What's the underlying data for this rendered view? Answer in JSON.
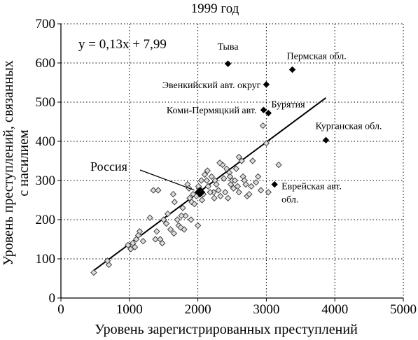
{
  "chart_data": {
    "type": "scatter",
    "title": "1999 год",
    "xlabel": "Уровень зарегистрированных преступлений",
    "ylabel": [
      "Уровень преступлений, связанных",
      "с насилием"
    ],
    "xlim": [
      0,
      5000
    ],
    "ylim": [
      0,
      700
    ],
    "x_ticks": [
      0,
      1000,
      2000,
      3000,
      4000,
      5000
    ],
    "y_ticks": [
      0,
      100,
      200,
      300,
      400,
      500,
      600,
      700
    ],
    "x_tick_labels": [
      "0",
      "1000",
      "2000",
      "3000",
      "4000",
      "5000"
    ],
    "y_tick_labels": [
      "0",
      "100",
      "200",
      "300",
      "400",
      "500",
      "600",
      "700"
    ],
    "grid": true,
    "equation": "y = 0,13x + 7,99",
    "trendline": {
      "slope": 0.13,
      "intercept": 7.99,
      "x_range": [
        480,
        3870
      ]
    },
    "regions": [
      [
        480,
        65
      ],
      [
        700,
        85
      ],
      [
        680,
        95
      ],
      [
        980,
        135
      ],
      [
        1020,
        125
      ],
      [
        1080,
        130
      ],
      [
        1100,
        150
      ],
      [
        1150,
        170
      ],
      [
        1130,
        160
      ],
      [
        1200,
        145
      ],
      [
        1050,
        140
      ],
      [
        1300,
        205
      ],
      [
        1350,
        275
      ],
      [
        1400,
        170
      ],
      [
        1380,
        150
      ],
      [
        1420,
        275
      ],
      [
        1450,
        150
      ],
      [
        1480,
        140
      ],
      [
        1500,
        200
      ],
      [
        1560,
        215
      ],
      [
        1600,
        175
      ],
      [
        1640,
        265
      ],
      [
        1650,
        165
      ],
      [
        1700,
        200
      ],
      [
        1720,
        185
      ],
      [
        1750,
        180
      ],
      [
        1780,
        230
      ],
      [
        1800,
        175
      ],
      [
        1820,
        210
      ],
      [
        1850,
        290
      ],
      [
        1870,
        280
      ],
      [
        1900,
        200
      ],
      [
        1910,
        245
      ],
      [
        1930,
        265
      ],
      [
        1950,
        240
      ],
      [
        2000,
        185
      ],
      [
        2020,
        280
      ],
      [
        2050,
        300
      ],
      [
        2080,
        265
      ],
      [
        2100,
        315
      ],
      [
        2130,
        300
      ],
      [
        2150,
        285
      ],
      [
        2200,
        310
      ],
      [
        2230,
        270
      ],
      [
        2250,
        300
      ],
      [
        2270,
        290
      ],
      [
        2300,
        275
      ],
      [
        2330,
        260
      ],
      [
        2360,
        340
      ],
      [
        2380,
        305
      ],
      [
        2400,
        270
      ],
      [
        2420,
        330
      ],
      [
        2440,
        255
      ],
      [
        2460,
        320
      ],
      [
        2480,
        290
      ],
      [
        2500,
        300
      ],
      [
        2520,
        280
      ],
      [
        2540,
        300
      ],
      [
        2560,
        330
      ],
      [
        2580,
        285
      ],
      [
        2600,
        270
      ],
      [
        2640,
        350
      ],
      [
        2660,
        310
      ],
      [
        2680,
        300
      ],
      [
        2700,
        290
      ],
      [
        2720,
        260
      ],
      [
        2750,
        265
      ],
      [
        2780,
        285
      ],
      [
        2800,
        350
      ],
      [
        2850,
        295
      ],
      [
        2880,
        310
      ],
      [
        2920,
        275
      ],
      [
        2950,
        440
      ],
      [
        3000,
        395
      ],
      [
        3030,
        270
      ],
      [
        3180,
        340
      ],
      [
        1980,
        260
      ],
      [
        2060,
        250
      ],
      [
        1760,
        210
      ],
      [
        1660,
        245
      ],
      [
        1540,
        190
      ],
      [
        1880,
        255
      ],
      [
        2140,
        325
      ],
      [
        2240,
        255
      ],
      [
        2320,
        345
      ],
      [
        2600,
        360
      ],
      [
        2470,
        310
      ],
      [
        2010,
        285
      ],
      [
        2180,
        270
      ]
    ],
    "highlighted": [
      {
        "label": "Тыва",
        "x": 2440,
        "y": 598
      },
      {
        "label": "Пермская обл.",
        "x": 3380,
        "y": 583
      },
      {
        "label": "Эвенкийский авт. округ",
        "x": 3000,
        "y": 545
      },
      {
        "label": "Коми-Пермяцкий авт.",
        "x": 2960,
        "y": 480
      },
      {
        "label": "Бурятия",
        "x": 3030,
        "y": 472
      },
      {
        "label": "Курганская обл.",
        "x": 3870,
        "y": 403
      },
      {
        "label": "Еврейская авт. обл.",
        "x": 3120,
        "y": 290
      },
      {
        "label": "Россия",
        "x": 2030,
        "y": 270
      }
    ]
  }
}
